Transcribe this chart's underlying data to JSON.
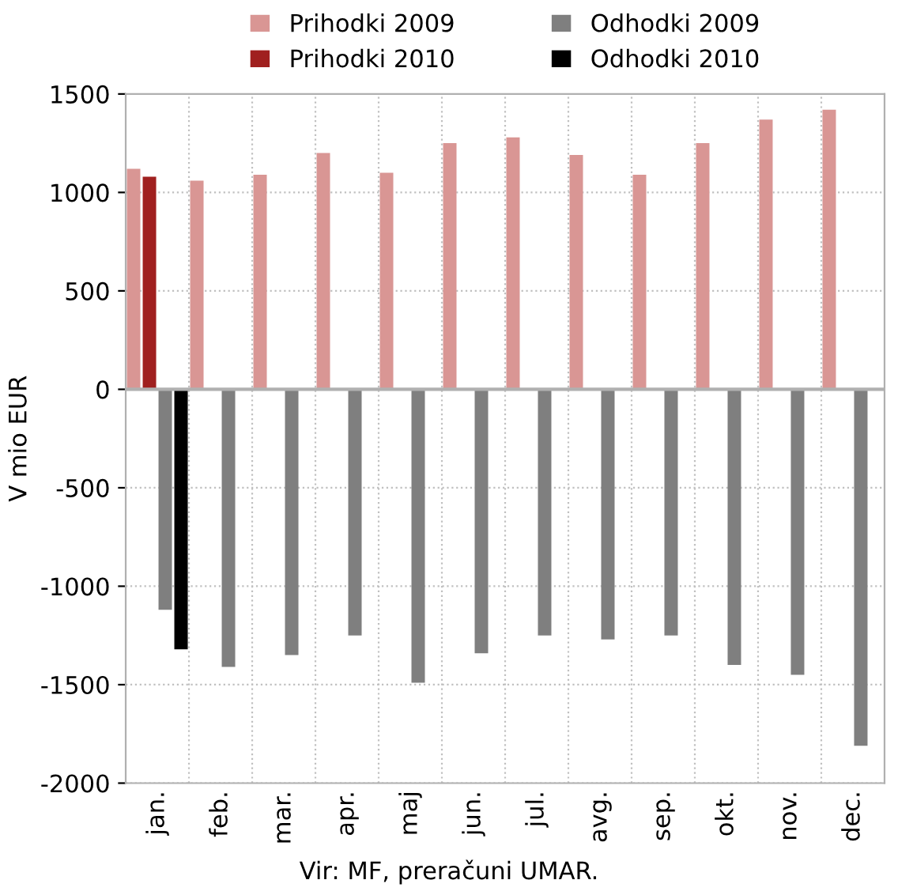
{
  "chart_data": {
    "type": "bar",
    "ylabel": "V mio EUR",
    "categories": [
      "jan.",
      "feb.",
      "mar.",
      "apr.",
      "maj",
      "jun.",
      "jul.",
      "avg.",
      "sep.",
      "okt.",
      "nov.",
      "dec."
    ],
    "series": [
      {
        "name": "Prihodki 2009",
        "color": "#d99694",
        "values": [
          1120,
          1060,
          1090,
          1200,
          1100,
          1250,
          1280,
          1190,
          1090,
          1250,
          1370,
          1420
        ]
      },
      {
        "name": "Prihodki 2010",
        "color": "#a0201f",
        "values": [
          1080,
          null,
          null,
          null,
          null,
          null,
          null,
          null,
          null,
          null,
          null,
          null
        ]
      },
      {
        "name": "Odhodki 2009",
        "color": "#7f7f7f",
        "values": [
          -1120,
          -1410,
          -1350,
          -1250,
          -1490,
          -1340,
          -1250,
          -1270,
          -1250,
          -1400,
          -1450,
          -1810
        ]
      },
      {
        "name": "Odhodki 2010",
        "color": "#000000",
        "values": [
          -1320,
          null,
          null,
          null,
          null,
          null,
          null,
          null,
          null,
          null,
          null,
          null
        ]
      }
    ],
    "ylim": [
      -2000,
      1500
    ],
    "yticks": [
      -2000,
      -1500,
      -1000,
      -500,
      0,
      500,
      1000,
      1500
    ],
    "grid": true,
    "legend": "top",
    "annotations": [
      "Vir: MF, preračuni UMAR."
    ]
  }
}
